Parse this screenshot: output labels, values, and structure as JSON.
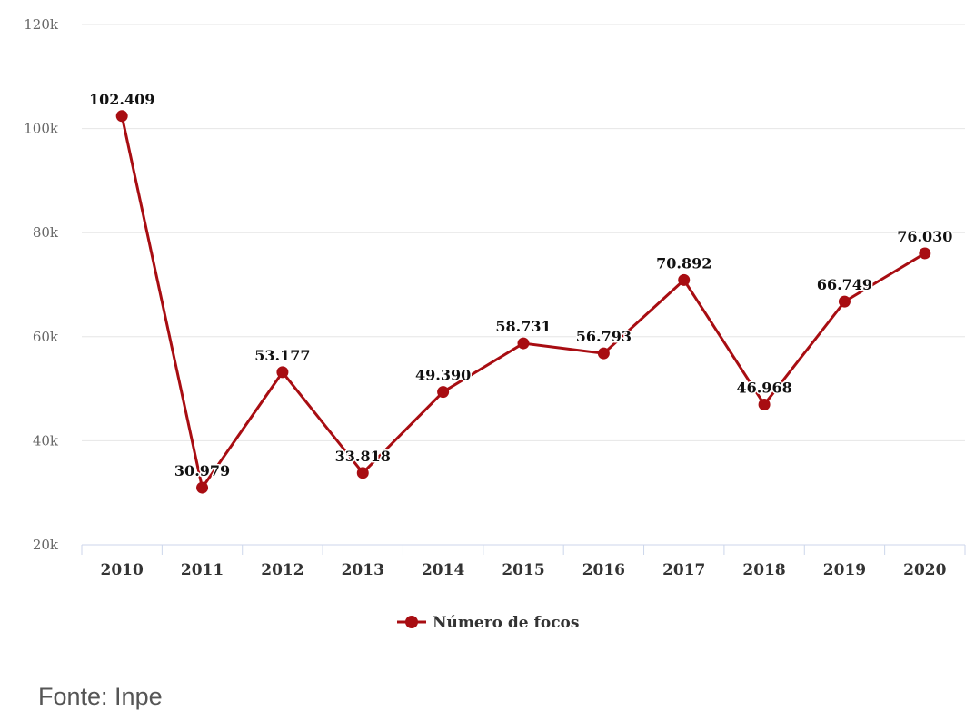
{
  "chart_data": {
    "type": "line",
    "categories": [
      "2010",
      "2011",
      "2012",
      "2013",
      "2014",
      "2015",
      "2016",
      "2017",
      "2018",
      "2019",
      "2020"
    ],
    "series": [
      {
        "name": "Número de focos",
        "values": [
          102409,
          30979,
          53177,
          33818,
          49390,
          58731,
          56793,
          70892,
          46968,
          66749,
          76030
        ],
        "labels": [
          "102.409",
          "30.979",
          "53.177",
          "33.818",
          "49.390",
          "58.731",
          "56.793",
          "70.892",
          "46.968",
          "66.749",
          "76.030"
        ],
        "color": "#a80d12"
      }
    ],
    "y_ticks": [
      "20k",
      "40k",
      "60k",
      "80k",
      "100k",
      "120k"
    ],
    "ylim": [
      20000,
      120000
    ],
    "grid": true,
    "legend": "bottom-center"
  },
  "source": "Fonte: Inpe"
}
